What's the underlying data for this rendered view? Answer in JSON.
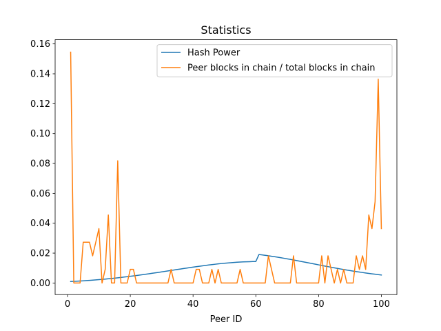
{
  "chart_data": {
    "type": "line",
    "title": "Statistics",
    "xlabel": "Peer ID",
    "ylabel": "",
    "xlim": [
      -3.95,
      104.95
    ],
    "ylim": [
      -0.00775,
      0.1628
    ],
    "x_ticks": [
      0,
      20,
      40,
      60,
      80,
      100
    ],
    "y_ticks": [
      0.0,
      0.02,
      0.04,
      0.06,
      0.08,
      0.1,
      0.12,
      0.14,
      0.16
    ],
    "x_tick_labels": [
      "0",
      "20",
      "40",
      "60",
      "80",
      "100"
    ],
    "y_tick_labels": [
      "0.00",
      "0.02",
      "0.04",
      "0.06",
      "0.08",
      "0.10",
      "0.12",
      "0.14",
      "0.16"
    ],
    "grid": false,
    "legend_position": "top-right",
    "x": [
      1,
      2,
      3,
      4,
      5,
      6,
      7,
      8,
      9,
      10,
      11,
      12,
      13,
      14,
      15,
      16,
      17,
      18,
      19,
      20,
      21,
      22,
      23,
      24,
      25,
      26,
      27,
      28,
      29,
      30,
      31,
      32,
      33,
      34,
      35,
      36,
      37,
      38,
      39,
      40,
      41,
      42,
      43,
      44,
      45,
      46,
      47,
      48,
      49,
      50,
      51,
      52,
      53,
      54,
      55,
      56,
      57,
      58,
      59,
      60,
      61,
      62,
      63,
      64,
      65,
      66,
      67,
      68,
      69,
      70,
      71,
      72,
      73,
      74,
      75,
      76,
      77,
      78,
      79,
      80,
      81,
      82,
      83,
      84,
      85,
      86,
      87,
      88,
      89,
      90,
      91,
      92,
      93,
      94,
      95,
      96,
      97,
      98,
      99,
      100
    ],
    "series": [
      {
        "name": "Hash Power",
        "color": "#1f77b4",
        "values": [
          0.00102,
          0.00112,
          0.00123,
          0.00135,
          0.00148,
          0.00162,
          0.00176,
          0.00192,
          0.00208,
          0.00225,
          0.00244,
          0.00263,
          0.00283,
          0.00304,
          0.00326,
          0.00349,
          0.00373,
          0.00397,
          0.00423,
          0.00449,
          0.00476,
          0.00504,
          0.00532,
          0.00561,
          0.0059,
          0.0062,
          0.00651,
          0.00682,
          0.00713,
          0.00745,
          0.00777,
          0.00809,
          0.00841,
          0.00873,
          0.00905,
          0.00937,
          0.00969,
          0.01001,
          0.01032,
          0.01063,
          0.01093,
          0.01122,
          0.01151,
          0.01179,
          0.01206,
          0.01232,
          0.01256,
          0.0128,
          0.01302,
          0.01322,
          0.01341,
          0.01359,
          0.01375,
          0.01389,
          0.01402,
          0.01413,
          0.01422,
          0.01429,
          0.01435,
          0.01438,
          0.01905,
          0.01879,
          0.01851,
          0.01822,
          0.01791,
          0.01759,
          0.01725,
          0.0169,
          0.01654,
          0.01617,
          0.0158,
          0.01541,
          0.01502,
          0.01462,
          0.01421,
          0.0138,
          0.01339,
          0.01298,
          0.01257,
          0.01216,
          0.01175,
          0.01134,
          0.01094,
          0.01054,
          0.01015,
          0.00977,
          0.00939,
          0.00903,
          0.00867,
          0.00832,
          0.00798,
          0.00765,
          0.00733,
          0.00702,
          0.00672,
          0.00643,
          0.00615,
          0.00588,
          0.00562,
          0.00537
        ]
      },
      {
        "name": "Peer blocks in chain / total blocks in chain",
        "color": "#ff7f0e",
        "values": [
          0.1545,
          0.0,
          0.0,
          0.0,
          0.0273,
          0.0273,
          0.0273,
          0.0182,
          0.0273,
          0.0364,
          0.0,
          0.0091,
          0.0455,
          0.0,
          0.0,
          0.0818,
          0.0,
          0.0,
          0.0,
          0.0091,
          0.0091,
          0.0,
          0.0,
          0.0,
          0.0,
          0.0,
          0.0,
          0.0,
          0.0,
          0.0,
          0.0,
          0.0,
          0.0091,
          0.0,
          0.0,
          0.0,
          0.0,
          0.0,
          0.0,
          0.0,
          0.0091,
          0.0091,
          0.0,
          0.0,
          0.0,
          0.0091,
          0.0,
          0.0091,
          0.0,
          0.0,
          0.0,
          0.0,
          0.0,
          0.0,
          0.0091,
          0.0,
          0.0,
          0.0,
          0.0,
          0.0,
          0.0,
          0.0,
          0.0,
          0.0182,
          0.0091,
          0.0,
          0.0,
          0.0,
          0.0,
          0.0,
          0.0,
          0.0182,
          0.0,
          0.0,
          0.0,
          0.0,
          0.0,
          0.0,
          0.0,
          0.0,
          0.0182,
          0.0,
          0.0182,
          0.0091,
          0.0,
          0.0091,
          0.0,
          0.0091,
          0.0,
          0.0,
          0.0,
          0.0182,
          0.0091,
          0.0182,
          0.0091,
          0.0455,
          0.0364,
          0.0545,
          0.1364,
          0.0364
        ]
      }
    ]
  }
}
